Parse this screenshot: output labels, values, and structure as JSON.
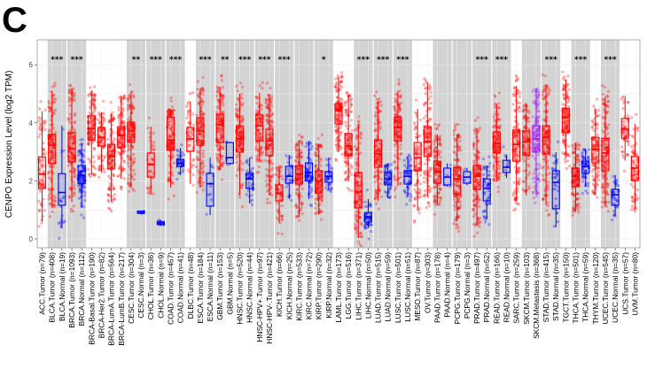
{
  "panel_letter": "C",
  "chart_data": {
    "type": "box",
    "ylabel": "CENPO Expression Level (log2 TPM)",
    "ylim": [
      -0.2,
      6.5
    ],
    "yticks": [
      0,
      2,
      4,
      6
    ],
    "grid": true,
    "colors": {
      "Tumor": "#FF0000",
      "Normal": "#0000FF",
      "Metastasis": "#A020F0"
    },
    "box_stats_order": [
      "lower_whisker",
      "q1",
      "median",
      "q3",
      "upper_whisker"
    ],
    "categories": [
      {
        "label": "ACC.Tumor (n=79)",
        "kind": "Tumor",
        "n": 79,
        "box": [
          0.6,
          1.74,
          2.23,
          2.83,
          4.4
        ]
      },
      {
        "label": "BLCA.Tumor (n=408)",
        "kind": "Tumor",
        "n": 408,
        "box": [
          1.07,
          2.6,
          3.23,
          3.6,
          5.1
        ]
      },
      {
        "label": "BLCA.Normal (n=19)",
        "kind": "Normal",
        "n": 19,
        "box": [
          0.37,
          1.16,
          1.6,
          2.25,
          3.9
        ]
      },
      {
        "label": "BRCA.Tumor (n=1093)",
        "kind": "Tumor",
        "n": 1093,
        "box": [
          1.27,
          2.65,
          3.1,
          3.66,
          5.2
        ]
      },
      {
        "label": "BRCA.Normal (n=112)",
        "kind": "Normal",
        "n": 112,
        "box": [
          1.07,
          1.9,
          2.2,
          2.53,
          3.3
        ]
      },
      {
        "label": "BRCA-Basal.Tumor (n=190)",
        "kind": "Tumor",
        "n": 190,
        "box": [
          2.2,
          3.41,
          3.8,
          4.24,
          5.1
        ]
      },
      {
        "label": "BRCA-Her2.Tumor (n=82)",
        "kind": "Tumor",
        "n": 82,
        "box": [
          2.29,
          3.2,
          3.5,
          3.84,
          4.36
        ]
      },
      {
        "label": "BRCA-LumA.Tumor (n=564)",
        "kind": "Tumor",
        "n": 564,
        "box": [
          1.28,
          2.41,
          2.83,
          3.26,
          4.3
        ]
      },
      {
        "label": "BRCA-LumB.Tumor (n=217)",
        "kind": "Tumor",
        "n": 217,
        "box": [
          2.07,
          3.14,
          3.56,
          3.87,
          4.9
        ]
      },
      {
        "label": "CESC.Tumor (n=304)",
        "kind": "Tumor",
        "n": 304,
        "box": [
          1.77,
          3.32,
          3.72,
          4.02,
          5.1
        ]
      },
      {
        "label": "CESC.Normal (n=3)",
        "kind": "Normal",
        "n": 3,
        "box": [
          0.85,
          0.88,
          0.91,
          0.96,
          0.98
        ]
      },
      {
        "label": "CHOL.Tumor (n=36)",
        "kind": "Tumor",
        "n": 36,
        "box": [
          1.52,
          2.13,
          2.56,
          2.96,
          3.87
        ]
      },
      {
        "label": "CHOL.Normal (n=9)",
        "kind": "Normal",
        "n": 9,
        "box": [
          0.45,
          0.5,
          0.55,
          0.6,
          0.65
        ]
      },
      {
        "label": "COAD.Tumor (n=457)",
        "kind": "Tumor",
        "n": 457,
        "box": [
          1.77,
          3.05,
          3.41,
          4.2,
          4.48
        ]
      },
      {
        "label": "COAD.Normal (n=41)",
        "kind": "Normal",
        "n": 41,
        "box": [
          2.2,
          2.5,
          2.6,
          2.74,
          3.14
        ]
      },
      {
        "label": "DLBC.Tumor (n=48)",
        "kind": "Tumor",
        "n": 48,
        "box": [
          1.9,
          3.02,
          3.45,
          3.84,
          4.73
        ]
      },
      {
        "label": "ESCA.Tumor (n=184)",
        "kind": "Tumor",
        "n": 184,
        "box": [
          1.77,
          3.23,
          3.72,
          4.18,
          5.18
        ]
      },
      {
        "label": "ESCA.Normal (n=11)",
        "kind": "Normal",
        "n": 11,
        "box": [
          0.82,
          1.13,
          1.9,
          2.26,
          2.8
        ]
      },
      {
        "label": "GBM.Tumor (n=153)",
        "kind": "Tumor",
        "n": 153,
        "box": [
          2.38,
          3.32,
          3.93,
          4.3,
          5.24
        ]
      },
      {
        "label": "GBM.Normal (n=5)",
        "kind": "Normal",
        "n": 5,
        "box": [
          2.55,
          2.6,
          2.8,
          3.32,
          3.35
        ]
      },
      {
        "label": "HNSC.Tumor (n=520)",
        "kind": "Tumor",
        "n": 520,
        "box": [
          1.5,
          2.99,
          3.45,
          3.9,
          5.0
        ]
      },
      {
        "label": "HNSC.Normal (n=44)",
        "kind": "Normal",
        "n": 44,
        "box": [
          1.22,
          1.74,
          2.07,
          2.26,
          2.8
        ]
      },
      {
        "label": "HNSC-HPV+.Tumor (n=97)",
        "kind": "Tumor",
        "n": 97,
        "box": [
          2.68,
          3.38,
          3.9,
          4.27,
          5.03
        ]
      },
      {
        "label": "HNSC-HPV-.Tumor (n=421)",
        "kind": "Tumor",
        "n": 421,
        "box": [
          1.5,
          2.87,
          3.38,
          3.78,
          5.0
        ]
      },
      {
        "label": "KICH.Tumor (n=66)",
        "kind": "Tumor",
        "n": 66,
        "box": [
          0.55,
          1.31,
          1.58,
          1.86,
          2.5
        ]
      },
      {
        "label": "KICH.Normal (n=25)",
        "kind": "Normal",
        "n": 25,
        "box": [
          1.37,
          1.92,
          2.16,
          2.5,
          2.9
        ]
      },
      {
        "label": "KIRC.Tumor (n=533)",
        "kind": "Tumor",
        "n": 533,
        "box": [
          0.76,
          1.89,
          2.23,
          2.53,
          3.4
        ]
      },
      {
        "label": "KIRC.Normal (n=72)",
        "kind": "Normal",
        "n": 72,
        "box": [
          1.37,
          2.01,
          2.29,
          2.62,
          3.38
        ]
      },
      {
        "label": "KIRP.Tumor (n=290)",
        "kind": "Tumor",
        "n": 290,
        "box": [
          0.85,
          1.58,
          1.98,
          2.35,
          3.26
        ]
      },
      {
        "label": "KIRP.Normal (n=32)",
        "kind": "Normal",
        "n": 32,
        "box": [
          1.68,
          1.95,
          2.16,
          2.32,
          2.8
        ]
      },
      {
        "label": "LAML.Tumor (n=173)",
        "kind": "Tumor",
        "n": 173,
        "box": [
          2.99,
          3.96,
          4.42,
          4.66,
          5.58
        ]
      },
      {
        "label": "LGG.Tumor (n=516)",
        "kind": "Tumor",
        "n": 516,
        "box": [
          1.98,
          2.87,
          3.2,
          3.63,
          4.94
        ]
      },
      {
        "label": "LIHC.Tumor (n=371)",
        "kind": "Tumor",
        "n": 371,
        "box": [
          0.06,
          1.07,
          1.62,
          2.29,
          3.96
        ]
      },
      {
        "label": "LIHC.Normal (n=50)",
        "kind": "Normal",
        "n": 50,
        "box": [
          0.37,
          0.58,
          0.76,
          0.91,
          1.37
        ]
      },
      {
        "label": "LUAD.Tumor (n=515)",
        "kind": "Tumor",
        "n": 515,
        "box": [
          1.31,
          2.47,
          2.93,
          3.41,
          4.73
        ]
      },
      {
        "label": "LUAD.Normal (n=59)",
        "kind": "Normal",
        "n": 59,
        "box": [
          1.4,
          1.86,
          2.07,
          2.29,
          2.6
        ]
      },
      {
        "label": "LUSC.Tumor (n=501)",
        "kind": "Tumor",
        "n": 501,
        "box": [
          1.83,
          3.38,
          3.84,
          4.2,
          5.1
        ]
      },
      {
        "label": "LUSC.Normal (n=51)",
        "kind": "Normal",
        "n": 51,
        "box": [
          1.45,
          1.89,
          2.16,
          2.35,
          2.85
        ]
      },
      {
        "label": "MESO.Tumor (n=87)",
        "kind": "Tumor",
        "n": 87,
        "box": [
          0.97,
          2.35,
          2.8,
          3.32,
          4.48
        ]
      },
      {
        "label": "OV.Tumor (n=303)",
        "kind": "Tumor",
        "n": 303,
        "box": [
          1.46,
          2.84,
          3.35,
          3.87,
          5.4
        ]
      },
      {
        "label": "PAAD.Tumor (n=178)",
        "kind": "Tumor",
        "n": 178,
        "box": [
          1.16,
          1.92,
          2.32,
          2.68,
          3.6
        ]
      },
      {
        "label": "PAAD.Normal (n=4)",
        "kind": "Normal",
        "n": 4,
        "box": [
          1.8,
          1.86,
          2.13,
          2.44,
          2.6
        ]
      },
      {
        "label": "PCPG.Tumor (n=179)",
        "kind": "Tumor",
        "n": 179,
        "box": [
          0.6,
          1.55,
          2.07,
          2.47,
          3.6
        ]
      },
      {
        "label": "PCPG.Normal (n=3)",
        "kind": "Normal",
        "n": 3,
        "box": [
          1.85,
          1.92,
          2.13,
          2.32,
          2.45
        ]
      },
      {
        "label": "PRAD.Tumor (n=497)",
        "kind": "Tumor",
        "n": 497,
        "box": [
          0.45,
          1.71,
          2.16,
          2.53,
          3.81
        ]
      },
      {
        "label": "PRAD.Normal (n=52)",
        "kind": "Normal",
        "n": 52,
        "box": [
          0.67,
          1.31,
          1.74,
          2.07,
          2.53
        ]
      },
      {
        "label": "READ.Tumor (n=166)",
        "kind": "Tumor",
        "n": 166,
        "box": [
          1.98,
          2.96,
          3.29,
          3.69,
          4.66
        ]
      },
      {
        "label": "READ.Normal (n=10)",
        "kind": "Normal",
        "n": 10,
        "box": [
          2.1,
          2.29,
          2.47,
          2.71,
          2.9
        ]
      },
      {
        "label": "SARC.Tumor (n=259)",
        "kind": "Tumor",
        "n": 259,
        "box": [
          1.31,
          2.68,
          3.26,
          3.75,
          5.27
        ]
      },
      {
        "label": "SKCM.Tumor (n=103)",
        "kind": "Tumor",
        "n": 103,
        "box": [
          1.5,
          2.87,
          3.35,
          3.72,
          4.66
        ]
      },
      {
        "label": "SKCM.Metastasis (n=368)",
        "kind": "Metastasis",
        "n": 368,
        "box": [
          1.52,
          2.99,
          3.45,
          3.9,
          5.18
        ]
      },
      {
        "label": "STAD.Tumor (n=415)",
        "kind": "Tumor",
        "n": 415,
        "box": [
          1.16,
          2.93,
          3.5,
          3.9,
          5.33
        ]
      },
      {
        "label": "STAD.Normal (n=35)",
        "kind": "Normal",
        "n": 35,
        "box": [
          0.4,
          1.04,
          1.95,
          2.35,
          2.99
        ]
      },
      {
        "label": "TGCT.Tumor (n=150)",
        "kind": "Tumor",
        "n": 150,
        "box": [
          2.8,
          3.66,
          4.18,
          4.5,
          5.49
        ]
      },
      {
        "label": "THCA.Tumor (n=501)",
        "kind": "Tumor",
        "n": 501,
        "box": [
          0.95,
          1.8,
          2.16,
          2.44,
          3.3
        ]
      },
      {
        "label": "THCA.Normal (n=59)",
        "kind": "Normal",
        "n": 59,
        "box": [
          1.8,
          2.26,
          2.5,
          2.68,
          3.1
        ]
      },
      {
        "label": "THYM.Tumor (n=120)",
        "kind": "Tumor",
        "n": 120,
        "box": [
          1.5,
          2.62,
          3.08,
          3.5,
          4.5
        ]
      },
      {
        "label": "UCEC.Tumor (n=545)",
        "kind": "Tumor",
        "n": 545,
        "box": [
          1.1,
          2.35,
          2.96,
          3.47,
          4.9
        ]
      },
      {
        "label": "UCEC.Normal (n=35)",
        "kind": "Normal",
        "n": 35,
        "box": [
          0.8,
          1.16,
          1.52,
          1.71,
          2.2
        ]
      },
      {
        "label": "UCS.Tumor (n=57)",
        "kind": "Tumor",
        "n": 57,
        "box": [
          2.7,
          3.47,
          3.78,
          4.15,
          4.9
        ]
      },
      {
        "label": "UVM.Tumor (n=80)",
        "kind": "Tumor",
        "n": 80,
        "box": [
          1.0,
          2.01,
          2.44,
          2.84,
          3.96
        ]
      }
    ],
    "groups": [
      {
        "name": "ACC",
        "start": 0,
        "count": 1,
        "shaded": false,
        "sig": ""
      },
      {
        "name": "BLCA",
        "start": 1,
        "count": 2,
        "shaded": true,
        "sig": "***"
      },
      {
        "name": "BRCA",
        "start": 3,
        "count": 2,
        "shaded": true,
        "sig": "***"
      },
      {
        "name": "BRCA-subtypes",
        "start": 5,
        "count": 4,
        "shaded": false,
        "sig": ""
      },
      {
        "name": "CESC",
        "start": 9,
        "count": 2,
        "shaded": true,
        "sig": "**"
      },
      {
        "name": "CHOL",
        "start": 11,
        "count": 2,
        "shaded": true,
        "sig": "***"
      },
      {
        "name": "COAD",
        "start": 13,
        "count": 2,
        "shaded": true,
        "sig": "***"
      },
      {
        "name": "DLBC",
        "start": 15,
        "count": 1,
        "shaded": false,
        "sig": ""
      },
      {
        "name": "ESCA",
        "start": 16,
        "count": 2,
        "shaded": true,
        "sig": "***"
      },
      {
        "name": "GBM",
        "start": 18,
        "count": 2,
        "shaded": true,
        "sig": "**"
      },
      {
        "name": "HNSC",
        "start": 20,
        "count": 2,
        "shaded": true,
        "sig": "***"
      },
      {
        "name": "HNSC-HPV",
        "start": 22,
        "count": 2,
        "shaded": true,
        "sig": "***"
      },
      {
        "name": "KICH",
        "start": 24,
        "count": 2,
        "shaded": true,
        "sig": "***"
      },
      {
        "name": "KIRC",
        "start": 26,
        "count": 2,
        "shaded": true,
        "sig": ""
      },
      {
        "name": "KIRP",
        "start": 28,
        "count": 2,
        "shaded": true,
        "sig": "*"
      },
      {
        "name": "LAML-LGG",
        "start": 30,
        "count": 2,
        "shaded": false,
        "sig": ""
      },
      {
        "name": "LIHC",
        "start": 32,
        "count": 2,
        "shaded": true,
        "sig": "***"
      },
      {
        "name": "LUAD",
        "start": 34,
        "count": 2,
        "shaded": true,
        "sig": "***"
      },
      {
        "name": "LUSC",
        "start": 36,
        "count": 2,
        "shaded": true,
        "sig": "***"
      },
      {
        "name": "MESO-OV",
        "start": 38,
        "count": 2,
        "shaded": false,
        "sig": ""
      },
      {
        "name": "PAAD",
        "start": 40,
        "count": 2,
        "shaded": true,
        "sig": ""
      },
      {
        "name": "PCPG",
        "start": 42,
        "count": 2,
        "shaded": true,
        "sig": ""
      },
      {
        "name": "PRAD",
        "start": 44,
        "count": 2,
        "shaded": true,
        "sig": "***"
      },
      {
        "name": "READ",
        "start": 46,
        "count": 2,
        "shaded": true,
        "sig": "***"
      },
      {
        "name": "SARC",
        "start": 48,
        "count": 1,
        "shaded": false,
        "sig": ""
      },
      {
        "name": "SKCM",
        "start": 49,
        "count": 2,
        "shaded": true,
        "sig": ""
      },
      {
        "name": "STAD",
        "start": 51,
        "count": 2,
        "shaded": true,
        "sig": "***"
      },
      {
        "name": "TGCT",
        "start": 53,
        "count": 1,
        "shaded": false,
        "sig": ""
      },
      {
        "name": "THCA",
        "start": 54,
        "count": 2,
        "shaded": true,
        "sig": "***"
      },
      {
        "name": "THYM",
        "start": 56,
        "count": 1,
        "shaded": false,
        "sig": ""
      },
      {
        "name": "UCEC",
        "start": 57,
        "count": 2,
        "shaded": true,
        "sig": "***"
      },
      {
        "name": "UCS-UVM",
        "start": 59,
        "count": 2,
        "shaded": false,
        "sig": ""
      }
    ]
  }
}
